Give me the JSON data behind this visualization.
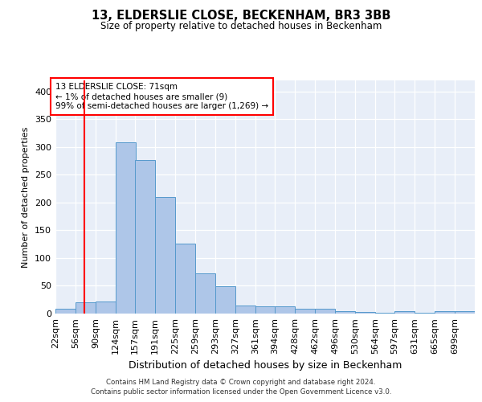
{
  "title1": "13, ELDERSLIE CLOSE, BECKENHAM, BR3 3BB",
  "title2": "Size of property relative to detached houses in Beckenham",
  "xlabel": "Distribution of detached houses by size in Beckenham",
  "ylabel": "Number of detached properties",
  "bar_labels": [
    "22sqm",
    "56sqm",
    "90sqm",
    "124sqm",
    "157sqm",
    "191sqm",
    "225sqm",
    "259sqm",
    "293sqm",
    "327sqm",
    "361sqm",
    "394sqm",
    "428sqm",
    "462sqm",
    "496sqm",
    "530sqm",
    "564sqm",
    "597sqm",
    "631sqm",
    "665sqm",
    "699sqm"
  ],
  "bar_heights": [
    8,
    20,
    22,
    308,
    277,
    210,
    126,
    72,
    49,
    15,
    13,
    13,
    8,
    8,
    5,
    3,
    1,
    4,
    1,
    4,
    4
  ],
  "bar_color": "#aec6e8",
  "bar_edge_color": "#5599cc",
  "background_color": "#e8eef8",
  "grid_color": "#ffffff",
  "red_line_x": 71,
  "annotation_text": "13 ELDERSLIE CLOSE: 71sqm\n← 1% of detached houses are smaller (9)\n99% of semi-detached houses are larger (1,269) →",
  "bin_edges": [
    22,
    56,
    90,
    124,
    157,
    191,
    225,
    259,
    293,
    327,
    361,
    394,
    428,
    462,
    496,
    530,
    564,
    597,
    631,
    665,
    699
  ],
  "bin_width": 34,
  "ylim": [
    0,
    420
  ],
  "yticks": [
    0,
    50,
    100,
    150,
    200,
    250,
    300,
    350,
    400
  ],
  "footnote1": "Contains HM Land Registry data © Crown copyright and database right 2024.",
  "footnote2": "Contains public sector information licensed under the Open Government Licence v3.0."
}
